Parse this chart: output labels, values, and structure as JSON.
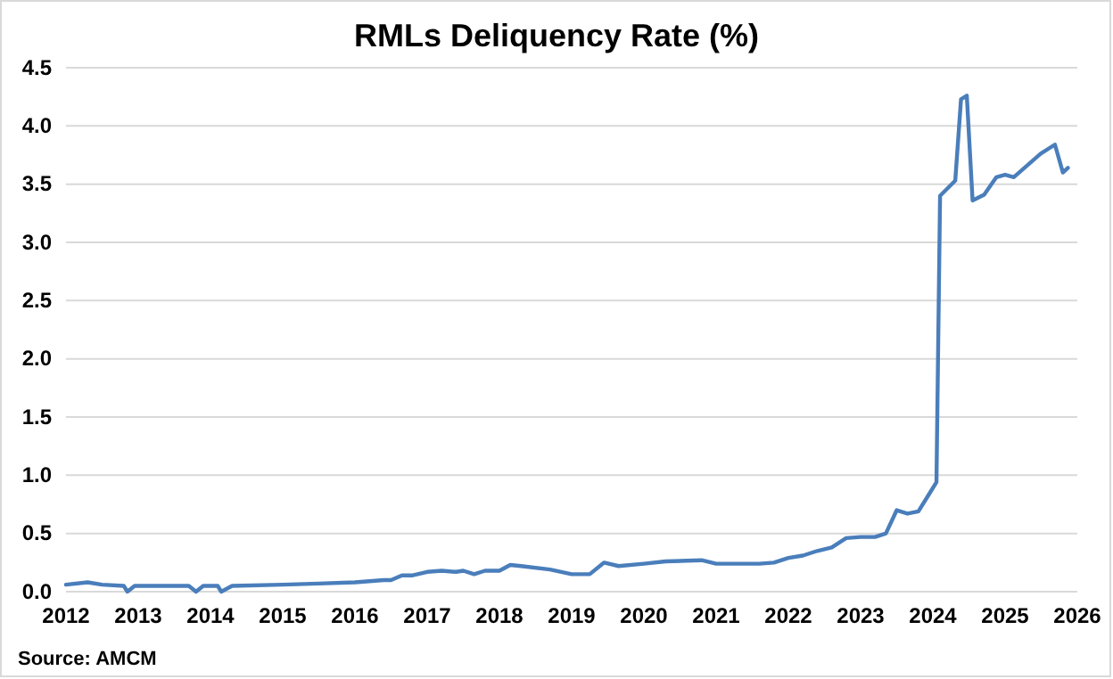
{
  "chart_data": {
    "type": "line",
    "title": "RMLs Deliquency Rate (%)",
    "annotations": [
      "Source: AMCM"
    ],
    "xlim": [
      2012,
      2026
    ],
    "xticks": [
      2012,
      2013,
      2014,
      2015,
      2016,
      2017,
      2018,
      2019,
      2020,
      2021,
      2022,
      2023,
      2024,
      2025,
      2026
    ],
    "ylim": [
      0,
      4.5
    ],
    "yticks": [
      {
        "value": 0,
        "label": "0.0"
      },
      {
        "value": 0.5,
        "label": "0.5"
      },
      {
        "value": 1,
        "label": "1.0"
      },
      {
        "value": 1.5,
        "label": "1.5"
      },
      {
        "value": 2,
        "label": "2.0"
      },
      {
        "value": 2.5,
        "label": "2.5"
      },
      {
        "value": 3,
        "label": "3.0"
      },
      {
        "value": 3.5,
        "label": "3.5"
      },
      {
        "value": 4,
        "label": "4.0"
      },
      {
        "value": 4.5,
        "label": "4.5"
      }
    ],
    "grid": "y",
    "marker": "none",
    "line_style": "solid",
    "series": [
      {
        "color": "#4a7ebb",
        "x": [
          2012.0,
          2012.3,
          2012.5,
          2012.8,
          2012.85,
          2012.95,
          2013.5,
          2013.7,
          2013.8,
          2013.9,
          2014.1,
          2014.15,
          2014.3,
          2015.0,
          2015.5,
          2016.0,
          2016.4,
          2016.5,
          2016.65,
          2016.8,
          2017.0,
          2017.2,
          2017.4,
          2017.5,
          2017.65,
          2017.8,
          2018.0,
          2018.15,
          2018.3,
          2018.7,
          2019.0,
          2019.25,
          2019.45,
          2019.65,
          2020.0,
          2020.3,
          2020.8,
          2021.0,
          2021.6,
          2021.8,
          2022.0,
          2022.2,
          2022.4,
          2022.6,
          2022.8,
          2023.0,
          2023.2,
          2023.35,
          2023.5,
          2023.65,
          2023.8,
          2023.95,
          2024.05,
          2024.1,
          2024.31,
          2024.39,
          2024.47,
          2024.55,
          2024.71,
          2024.88,
          2025.0,
          2025.12,
          2025.49,
          2025.69,
          2025.8,
          2025.87
        ],
        "values": [
          0.06,
          0.08,
          0.06,
          0.05,
          0.0,
          0.05,
          0.05,
          0.05,
          0.0,
          0.05,
          0.05,
          0.0,
          0.05,
          0.06,
          0.07,
          0.08,
          0.1,
          0.1,
          0.14,
          0.14,
          0.17,
          0.18,
          0.17,
          0.18,
          0.15,
          0.18,
          0.18,
          0.23,
          0.22,
          0.19,
          0.15,
          0.15,
          0.25,
          0.22,
          0.24,
          0.26,
          0.27,
          0.24,
          0.24,
          0.25,
          0.29,
          0.31,
          0.35,
          0.38,
          0.46,
          0.47,
          0.47,
          0.5,
          0.7,
          0.67,
          0.69,
          0.84,
          0.94,
          3.4,
          3.53,
          4.23,
          4.26,
          3.36,
          3.41,
          3.56,
          3.58,
          3.56,
          3.76,
          3.84,
          3.6,
          3.64
        ]
      }
    ]
  }
}
